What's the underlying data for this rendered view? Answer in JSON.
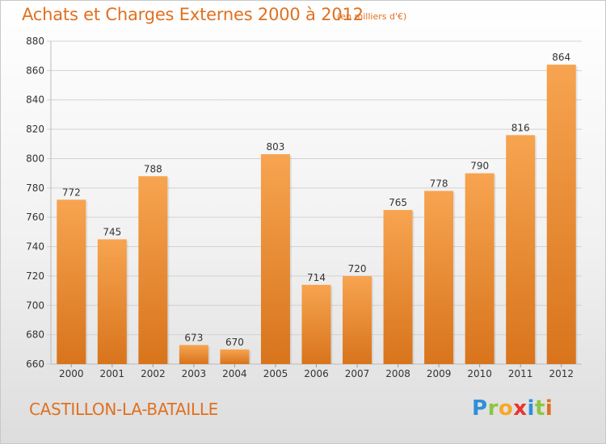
{
  "title": "Achats et Charges Externes 2000 à 2012",
  "subtitle": "(en milliers d'€)",
  "commune": "CASTILLON-LA-BATAILLE",
  "logo": {
    "letters": [
      "P",
      "r",
      "o",
      "x",
      "i",
      "t",
      "i"
    ],
    "colors": [
      "#2f8fd8",
      "#8cc63f",
      "#f7a823",
      "#e8352c",
      "#2f8fd8",
      "#8cc63f",
      "#e07020"
    ]
  },
  "colors": {
    "bar_top": "#f7a450",
    "bar_bottom": "#d8741c",
    "grid": "#d2d2d2",
    "axis_text": "#333333",
    "accent": "#e07020"
  },
  "chart_data": {
    "type": "bar",
    "categories": [
      "2000",
      "2001",
      "2002",
      "2003",
      "2004",
      "2005",
      "2006",
      "2007",
      "2008",
      "2009",
      "2010",
      "2011",
      "2012"
    ],
    "values": [
      772,
      745,
      788,
      673,
      670,
      803,
      714,
      720,
      765,
      778,
      790,
      816,
      864
    ],
    "ylim": [
      660,
      880
    ],
    "yticks": [
      660,
      680,
      700,
      720,
      740,
      760,
      780,
      800,
      820,
      840,
      860,
      880
    ],
    "grid": true
  }
}
